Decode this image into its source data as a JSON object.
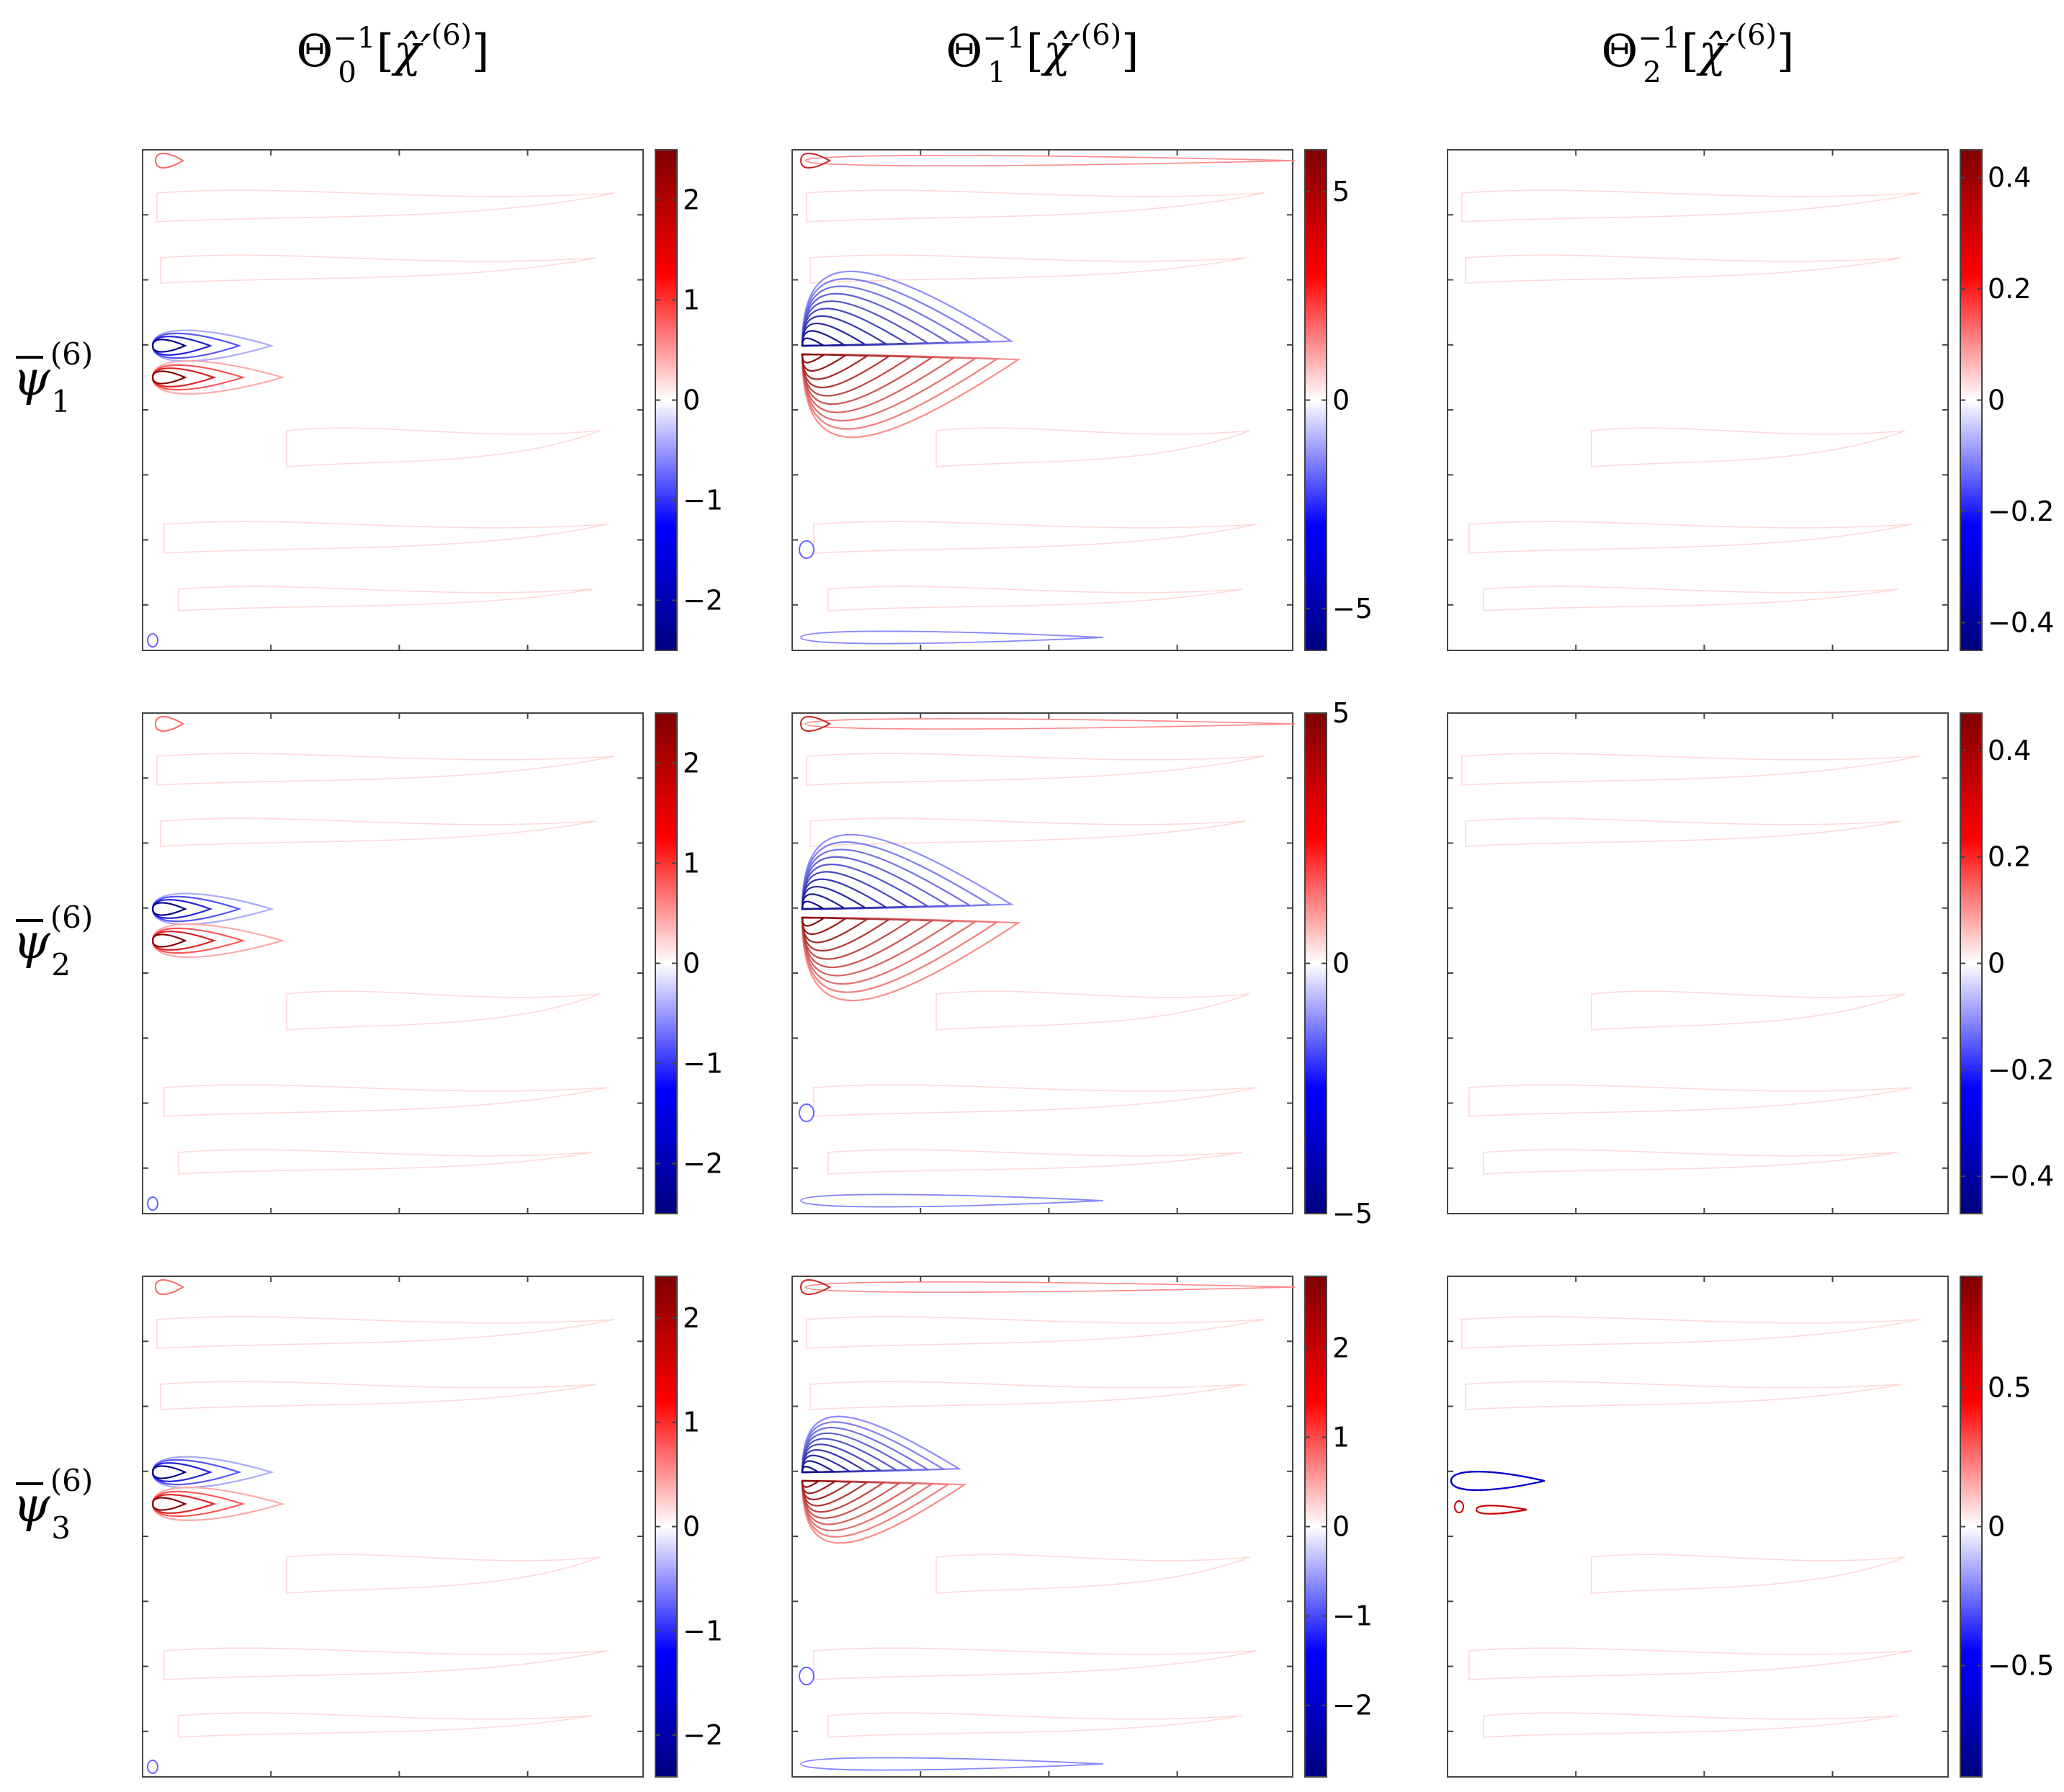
{
  "figure": {
    "column_titles": [
      {
        "base": "Θ",
        "sub": "0",
        "sup": "−1",
        "arg": "χ̂′",
        "argsup": "(6)"
      },
      {
        "base": "Θ",
        "sub": "1",
        "sup": "−1",
        "arg": "χ̂′",
        "argsup": "(6)"
      },
      {
        "base": "Θ",
        "sub": "2",
        "sup": "−1",
        "arg": "χ̂′",
        "argsup": "(6)"
      }
    ],
    "row_titles": [
      {
        "base": "ψ",
        "sub": "1",
        "sup": "(6)"
      },
      {
        "base": "ψ",
        "sub": "2",
        "sup": "(6)"
      },
      {
        "base": "ψ",
        "sub": "3",
        "sup": "(6)"
      }
    ],
    "colors": {
      "negative_max": "#00007f",
      "negative": "#0000ff",
      "zero": "#ffffff",
      "positive": "#ff0000",
      "positive_max": "#7f0000"
    }
  },
  "chart_data": [
    {
      "type": "contour",
      "row": 0,
      "col": 0,
      "colorbar": {
        "range": [
          -2.5,
          2.5
        ],
        "ticks": [
          -2,
          -1,
          0,
          1,
          2
        ],
        "tick_labels": [
          "−2",
          "−1",
          "0",
          "1",
          "2"
        ]
      }
    },
    {
      "type": "contour",
      "row": 0,
      "col": 1,
      "colorbar": {
        "range": [
          -6,
          6
        ],
        "ticks": [
          -5,
          0,
          5
        ],
        "tick_labels": [
          "−5",
          "0",
          "5"
        ]
      }
    },
    {
      "type": "contour",
      "row": 0,
      "col": 2,
      "colorbar": {
        "range": [
          -0.45,
          0.45
        ],
        "ticks": [
          -0.4,
          -0.2,
          0,
          0.2,
          0.4
        ],
        "tick_labels": [
          "−0.4",
          "−0.2",
          "0",
          "0.2",
          "0.4"
        ]
      }
    },
    {
      "type": "contour",
      "row": 1,
      "col": 0,
      "colorbar": {
        "range": [
          -2.5,
          2.5
        ],
        "ticks": [
          -2,
          -1,
          0,
          1,
          2
        ],
        "tick_labels": [
          "−2",
          "−1",
          "0",
          "1",
          "2"
        ]
      }
    },
    {
      "type": "contour",
      "row": 1,
      "col": 1,
      "colorbar": {
        "range": [
          -5,
          5
        ],
        "ticks": [
          -5,
          0,
          5
        ],
        "tick_labels": [
          "−5",
          "0",
          "5"
        ]
      }
    },
    {
      "type": "contour",
      "row": 1,
      "col": 2,
      "colorbar": {
        "range": [
          -0.47,
          0.47
        ],
        "ticks": [
          -0.4,
          -0.2,
          0,
          0.2,
          0.4
        ],
        "tick_labels": [
          "−0.4",
          "−0.2",
          "0",
          "0.2",
          "0.4"
        ]
      }
    },
    {
      "type": "contour",
      "row": 2,
      "col": 0,
      "colorbar": {
        "range": [
          -2.4,
          2.4
        ],
        "ticks": [
          -2,
          -1,
          0,
          1,
          2
        ],
        "tick_labels": [
          "−2",
          "−1",
          "0",
          "1",
          "2"
        ]
      }
    },
    {
      "type": "contour",
      "row": 2,
      "col": 1,
      "colorbar": {
        "range": [
          -2.8,
          2.8
        ],
        "ticks": [
          -2,
          -1,
          0,
          1,
          2
        ],
        "tick_labels": [
          "−2",
          "−1",
          "0",
          "1",
          "2"
        ]
      }
    },
    {
      "type": "contour",
      "row": 2,
      "col": 2,
      "colorbar": {
        "range": [
          -0.9,
          0.9
        ],
        "ticks": [
          -0.5,
          0,
          0.5
        ],
        "tick_labels": [
          "−0.5",
          "0",
          "0.5"
        ]
      }
    }
  ]
}
